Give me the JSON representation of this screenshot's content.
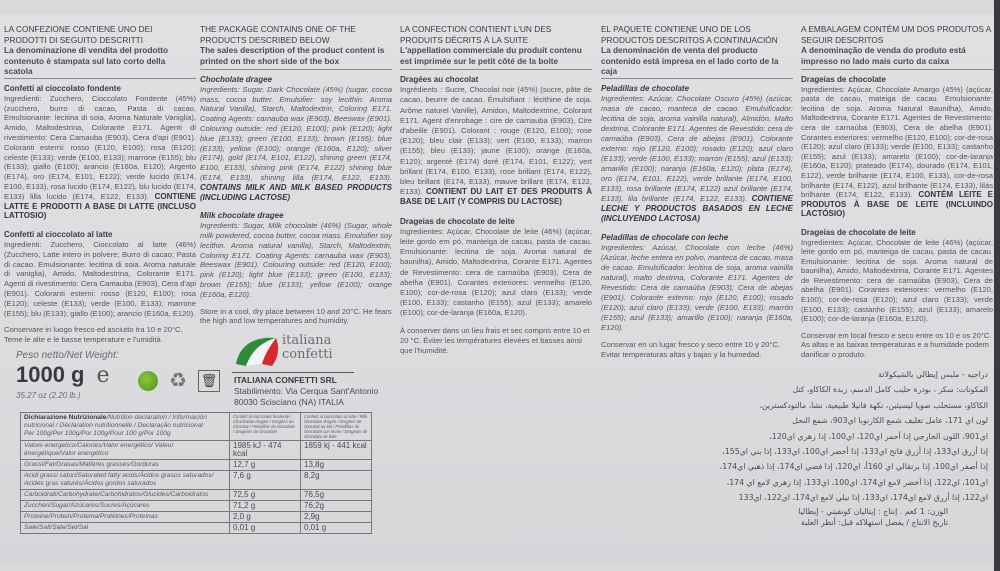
{
  "columns": [
    {
      "lang": "it",
      "header": "LA CONFEZIONE CONTIENE UNO DEI PRODOTTI DI SEGUITO DESCRITTI",
      "subheader": "La denominazione di vendita del prodotto contenuto è stampata sul lato corto della scatola",
      "p1_title": "Confetti al cioccolato fondente",
      "p1_body": "Ingredienti: Zucchero, Cioccolato Fondente (45%) (zucchero, burro di cacao, Pasta di cacao, Emulsionante: lecitina di soia, Aroma Naturale Vaniglia), Amido, Maltodestrina, Colorante E171. Agenti di rivestimento: Cera Camauba (E903), Cera d'api (E901). Coloranti esterni: rosso (E120, E100); rosa (E120); celeste (E133); verde (E100, E133); marrone (E155); blu (E133); giallo (E100); arancio (E160a, E120); Argento (E174), oro (E174, E101, E122); verde lucido (E174, E100, E133), rosa lucido (E174, E122), blu lucido (E174, E133) lilla lucido (E174, E122, E133).",
      "p1_contains": "CONTIENE LATTE E PRODOTTI A BASE DI LATTE (INCLUSO LATTOSIO)",
      "p2_title": "Confetti al cioccolato al latte",
      "p2_body": "Ingredienti: Zucchero, Cioccolato al latte (46%) (Zucchero, Latte intero in polvere; Burro di cacao; Pasta di cacao. Emulsionante: lecitina di soia. Aroma naturale di vaniglia), Amido, Maltodestrina, Colorante E171. Agenti di rivestimento: Cera Camauba (E903), Cera d'api (E901). Coloranti esterni: rosso (E120, E100); rosa (E120); celeste (E133); verde (E100, E133); marrone (E155); blu (E133); giallo (E100); arancio (E160a, E120).",
      "store": "Conservare in luogo fresco ed asciutto tra 10 e 20°C. Teme le alte e le basse temperature e l'umidità"
    },
    {
      "lang": "en",
      "header": "THE PACKAGE CONTAINS ONE OF THE PRODUCTS DESCRIBED BELOW",
      "subheader": "The sales description of the product content is printed on the short side of the box",
      "p1_title": "Chocholate dragee",
      "p1_body": "Ingredients: Sugar, Dark Chocolate (45%) (sugar, cocoa mass, cocoa butter. Emulsifier: soy lecithin. Aroma Natural Vanilla), Starch, Maltodextrin, Coloring E171. Coating Agents: carnauba wax (E903), Beeswax (E901). Colouring outside: red (E120, E100); pink (E120); light blue (E133); green (E100, E133); brown (E155); blue (E133); yellow (E100); orange (E160a, E120); silver (E174), gold (E174, E101, E122), shining green (E174, E100, E133), shining pink (E174, E122) shining blue (E174, E133), shining lilla (E174, E122, E133).",
      "p1_contains": "CONTAINS MILK AND MILK BASED PRODUCTS (INCLUDING LACTOSE)",
      "p2_title": "Milk chocolate dragee",
      "p2_body": "Ingredients: Sugar, Milk chocolate (46%) (Sugar, whole milk powdered, cocoa butter, cocoa mass. Emulsifier soy lecithin. Aroma natural vanilla), Starch, Maltodextrin, Coloring E171. Coating Agents: carnauba wax (E903), Beeswax (E901). Colouring outside: red (E120, E100); pink (E120); light blue (E133); green (E100, E133); brown (E155); blue (E133); yellow (E100); orange (E160a, E120).",
      "store": "Store in a cool, dry place between 10 and 20°C. He fears the high and low temperatures and humidity."
    },
    {
      "lang": "fr",
      "header": "LA CONFECTION CONTIENT L'UN DES PRODUITS DÉCRITS À LA SUITE",
      "subheader": "L'appellation commerciale du produit contenu est imprimée sur le petit côté de la boite",
      "p1_title": "Dragées au chocolat",
      "p1_body": "Ingrédients : Sucre, Chocolat noir (45%) (sucre, pâte de cacao, beurre de cacao. Émulsifiant : lécithine de soja. Arôme naturel Vanille), Amidon, Maltodextrine, Colorant E171. Agent d'enrobage : cire de carnauba (E903), Cire d'abeille (E901). Colorant : rouge (E120, E100); rose (E120); bleu clair (E133); vert (E100, E133); marron (E155); bleu (E133); jaune (E100); orange (E160a, E120); argenté (E174) doré (E174, E101, E122); vert brillant (E174, E100, E133), rose brillant (E174, E122), bleu brillant (E174, E133), mauve brillant (E174, E122, E133).",
      "p1_contains": "CONTIENT DU LAIT ET DES PRODUITS À BASE DE LAIT (Y COMPRIS DU LACTOSE)",
      "p2_title": "Drageias de chocolate de leite",
      "p2_body": "Ingredientes: Açúcar, Chocolate de leite (46%) (açúcar, leite gordo em pó, manteiga de cacau, pasta de cacau. Emulsionante: lecitina de soja. Aroma natural de baunilha), Amido, Maltodextrina, Corante E171. Agentes de Revestimento: cera de carnaúba (E903), Cera de abelha (E901). Corantes exteriores: vermelho (E120, E100); cor-de-rosa (E120); azul claro (E133); verde (E100, E133); castanho (E155); azul (E133); amarelo (E100); cor-de-laranja (E160a, E120).",
      "store": "À conserver dans un lieu frais et sec compris entre 10 et 20 °C. Éviter les températures élevées et basses ainsi que l'humidité."
    },
    {
      "lang": "es",
      "header": "EL PAQUETE CONTIENE UNO DE LOS PRODUCTOS DESCRITOS A CONTINUACIÓN",
      "subheader": "La denominación de venta del producto contenido está impresa en el lado corto de la caja",
      "p1_title": "Peladillas de chocolate",
      "p1_body": "Ingredientes: Azúcar, Chocolate Oscuro (45%) (azúcar, masa de cacao, manteca de cacao. Emulsificador: lecitina de soja, aroma vainilla natural), Almidón, Malto dextrina, Colorante E171. Agentes de Revestido: cera de carnaúba (E903), Cera de abejas (E901). Colorante externo: rojo (E120, E100); rosado (E120); azul claro (E133); verde (E100, E133); marrón (E155); azul (E133); amarillo (E100); naranja (E160a, E120); plata (E174), oro (E174, E101, E122), verde brillante (E174, E100, E133), rosa brillante (E174, E122) azul brillante (E174, E133), lila brillante (E174, E122, E133).",
      "p1_contains": "CONTIENE LECHE Y PRODUCTOS BASADOS EN LECHE (INCLUYENDO LACTOSA)",
      "p2_title": "Peladillas de chocolate con leche",
      "p2_body": "Ingredientes: Azúcar, Chocolate con leche (46%) (Azúcar, leche entera en polvo, manteca de cacao, masa de cacao. Emulsificador: lecitina de soja, aroma vainilla natural), malto dextrina, Colorante E171. Agentes de Revestido: Cera de carnaúba (E903); Cera de abejas (E901). Colorante externo: rojo (E120, E100); rosado (E120); azul claro (E133); verde (E100, E133); marrón (E155); azul (E133); amarillo (E100); naranja (E160a, E120).",
      "store": "Conservar en un lugar fresco y seco entre 10 y 20°C. Evitar temperaturas altas y bajas y la humedad."
    },
    {
      "lang": "pt",
      "header": "A EMBALAGEM CONTÉM UM DOS PRODUTOS A SEGUIR DESCRITOS",
      "subheader": "A denominação de venda do produto está impresso no lado mais curto da caixa",
      "p1_title": "Drageias de chocolate",
      "p1_body": "Ingredientes: Açúcar, Chocolate Amargo (45%) (açúcar, pasta de cacau, mateiga de cacau. Emulsionante: lecitina de soja. Aroma Natural Baunilha), Amido, Maltodextrina, Corante E171. Agentes de Revestimento: cera de carnaúba (E903), Cera de abelha (E901). Corantes exteriores: vermelho (E120, E100); cor-de-rosa (E120); azul claro (E133); verde (E100, E133); castanho (E155); azul (E133); amarelo (E100); cor-de-laranja (E160a, E120); prateado (E174), dourado (E174, E101, E122), verde brilhante (E174, E100, E133), cor-de-rosa brilhante (E174, E122), azul brilhante (E174, E133), lilás brilhante (E174, E122, E133).",
      "p1_contains": "CONTÉM LEITE E PRODUTOS À BASE DE LEITE (INCLUINDO LACTÓSIO)",
      "p2_title": "Drageias de chocolate de leite",
      "p2_body": "Ingredientes: Açúcar, Chocolate de leite (46%) (açúcar, leite gordo em pó, manteiga de cacau, pasta de cacau. Emulsionante: lecitina de soja. Aroma natural de baunilha), Amido, Maltodextrina, Corante E171. Agentes de Revestimento: cera de carnaúba (E903), Cera de abelha (E901). Corantes exteriores: vermelho (E120, E100); cor-de-rosa (E120); azul claro (E133); verde (E100, E133); castanho (E155); azul (E133); amarelo (E100); cor-de-laranja (E160a, E120).",
      "store": "Conservar em local fresco e seco entre os 10 e os 20°C. As altas e as baixas temperaturas e a humidade podem danificar o produto."
    }
  ],
  "weight": {
    "label": "Peso netto/",
    "label_en": "Net Weight:",
    "value": "1000 g",
    "estimated_mark": "e",
    "imperial": "35.27 oz (2.20 lb.)"
  },
  "icons": [
    "green-dot-icon",
    "recycle-icon",
    "tidyman-bin-icon"
  ],
  "logo": {
    "line1": "italiana",
    "line2": "confetti",
    "colors": [
      "#2e8b3a",
      "#ffffff",
      "#d42a2a"
    ]
  },
  "company": {
    "name": "ITALIANA CONFETTI SRL",
    "address1": "Stabilimento: Via Cerqua Sant'Antonio",
    "address2": "80030 Scisciano (NA) ITALIA"
  },
  "nutrition": {
    "header_bold": "Dichiarazione Nutrizionale",
    "header_rest": "/Nutrition declaration / Información nutricional / Déclaration nutritionnelle / Declaração nutricional",
    "per": "Per 100g/Per 100g/Por 100g/Pour 100 g/Por 100g",
    "col1": "Confetti al cioccolato fondente / Chocholate dragee / Dragées au chocolat / Peladillas de chocolate / Drageias de chocolate",
    "col2": "Confetti al cioccolato al latte / Milk chocolate dragee / Dragées de chocolat au lait / Peladillas de chocolate con leche / Drageias de chocolate de leite",
    "rows": [
      {
        "label": "Valore energetico/Calories/Valor energético/ Valeur énergétique/Valor energético",
        "v1": "1985 kJ - 474 kcal",
        "v2": "1859 kj - 441 kcal"
      },
      {
        "label": "Grassi/Fat/Grasas/Matières grasses/Gorduras",
        "v1": "12,7 g",
        "v2": "13,8g"
      },
      {
        "label": "Acidi grassi saturi/Saturated fatty acids/Ácidos grasos saturados/ Acides gras saturés/Ácidos gordos saturados",
        "v1": "7,6 g",
        "v2": "8,2g"
      },
      {
        "label": "Carboidrati/Carbohydrate/Carbohidratos/Glucides/Carboidratos",
        "v1": "72,5 g",
        "v2": "76,5g"
      },
      {
        "label": "Zuccheri/Sugar/Azúcares/Sucres/Açúcares",
        "v1": "71,2 g",
        "v2": "76,2g"
      },
      {
        "label": "Proteine/Protein/Proteína/Protéines/Proteínas",
        "v1": "2,0 g",
        "v2": "2,9g"
      },
      {
        "label": "Sale/Salt/Sale/Sel/Sal",
        "v1": "0,01 g",
        "v2": "0,01 g"
      }
    ]
  },
  "arabic": [
    "دراجيه - ملبس إيطالي بالشيكولاتة",
    "المكونات: سكر ، بودرة حليب كامل الدسم، زبدة الكاكاو، كتل",
    "الكاكاو، مستحلب صويا ليسيثين، نكهة فانيلا طبيعية، نشا، مالتودكسترين،",
    "لون اي 171، عامل تغليف شمع الكارنوبا اي903، شمع النحل",
    "اي901، اللون الخارجي إذا أحمر اي120، اي100، إذا زهري اي120،",
    "إذا أزرق اي133، إذا أزرق فاتح اي133، إذا أخضر اي100، اي133، إذا بني اي155،",
    "إذا أصفر اي100، إذا برتقالي اي 160أ، اي120، إذا فضي اي174، إذا ذهبي اي174،",
    "اي101، اي122، إذا أخضر لامع اي174، اي100، اي133، إذا زهري لامع اي 174،",
    "اي122، إذا أزرق لامع اي174، اي133، إذا نيلي لامع اي174، اي122، اي133",
    "الوزن: 1 كغم . إنتاج : إيتاليان كونفيتي - إيطاليا",
    "تاريخ الانتاج / يفضل استهلاكه قبل: أنظر العلبة"
  ]
}
